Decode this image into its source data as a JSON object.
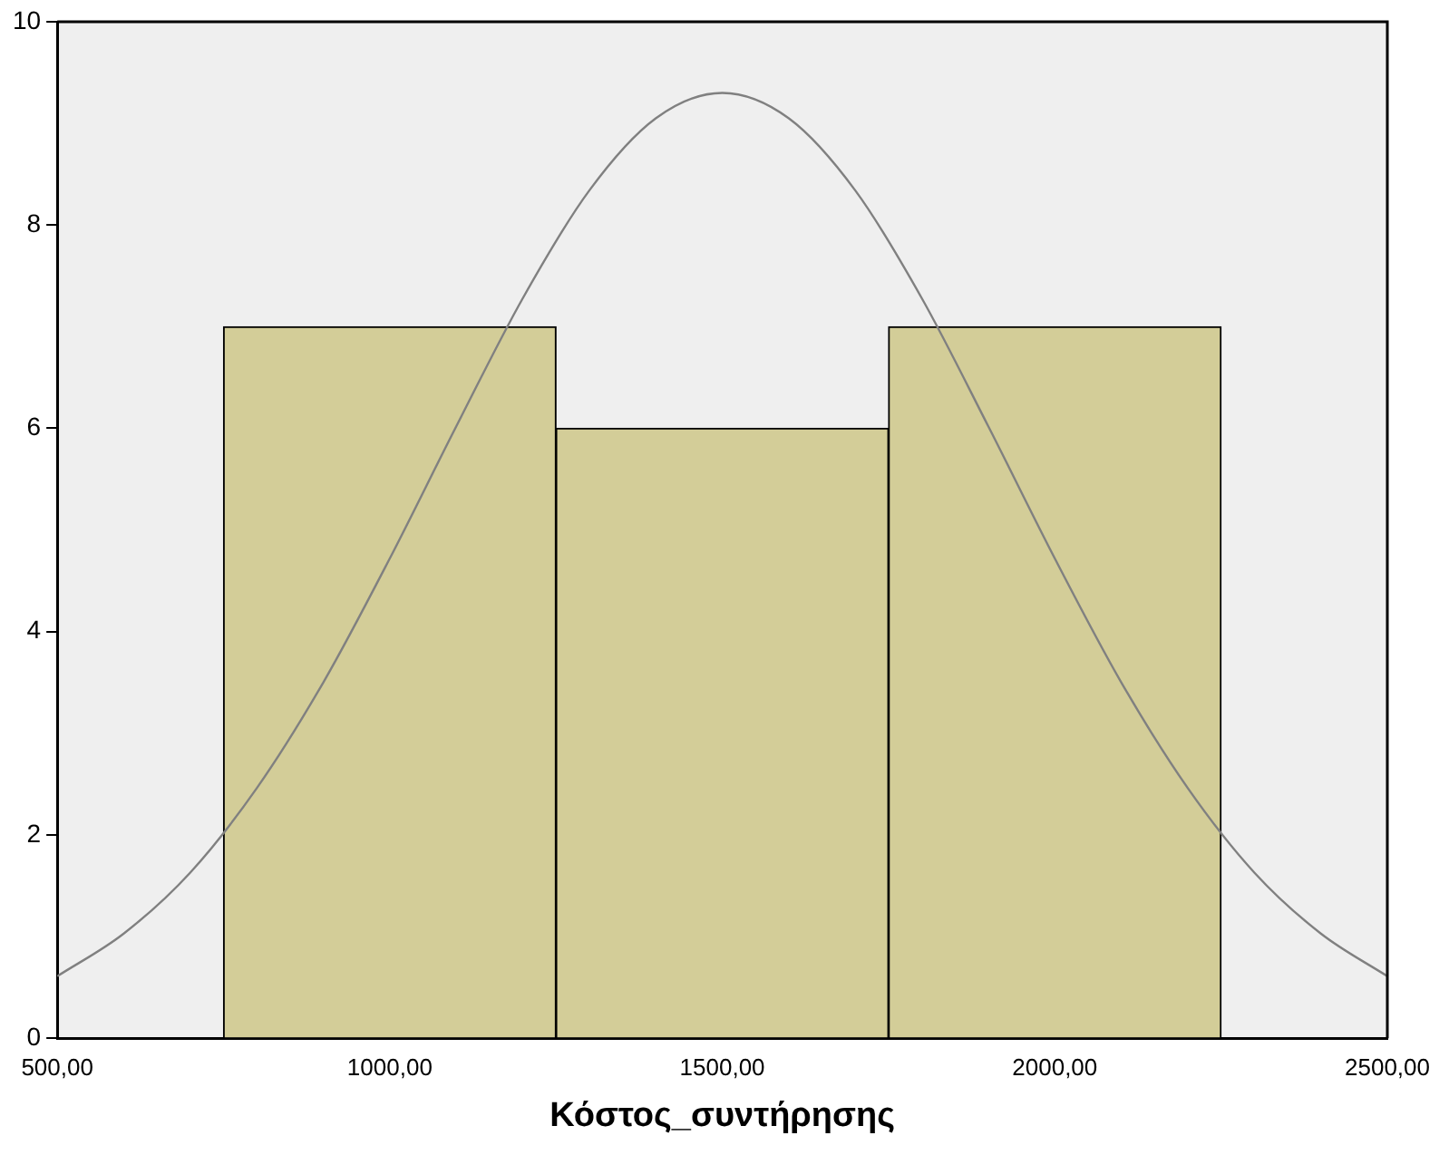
{
  "chart_data": {
    "type": "histogram",
    "xlabel": "Κόστος_συντήρησης",
    "bins": [
      750,
      1250,
      1750,
      2250
    ],
    "values": [
      7,
      6,
      7
    ],
    "color": "#d3cd98",
    "series": [
      {
        "type": "line",
        "color": "#808080",
        "marker": "none",
        "x": [
          500,
          600,
          700,
          800,
          900,
          1000,
          1100,
          1200,
          1300,
          1400,
          1500,
          1600,
          1700,
          1800,
          1900,
          2000,
          2100,
          2200,
          2300,
          2400,
          2500
        ],
        "values": [
          0.61,
          1.03,
          1.63,
          2.46,
          3.5,
          4.72,
          6.02,
          7.28,
          8.34,
          9.05,
          9.3,
          9.05,
          8.34,
          7.28,
          6.02,
          4.72,
          3.5,
          2.46,
          1.63,
          1.03,
          0.61
        ]
      }
    ],
    "xlim": [
      500,
      2500
    ],
    "xticks": [
      {
        "value": 500,
        "label": "500,00"
      },
      {
        "value": 1000,
        "label": "1000,00"
      },
      {
        "value": 1500,
        "label": "1500,00"
      },
      {
        "value": 2000,
        "label": "2000,00"
      },
      {
        "value": 2500,
        "label": "2500,00"
      }
    ],
    "ylim": [
      0,
      10
    ],
    "yticks": [
      0,
      2,
      4,
      6,
      8,
      10
    ],
    "grid": false,
    "legend": false
  }
}
